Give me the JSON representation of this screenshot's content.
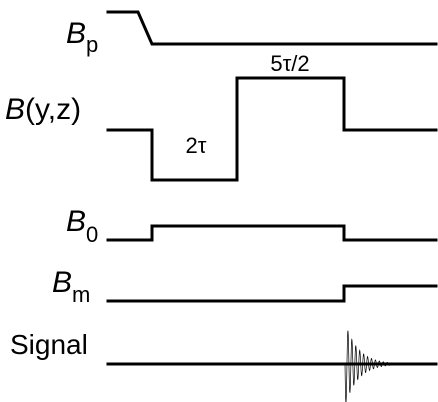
{
  "channels": {
    "bp": {
      "symbol": "B",
      "subscript": "p"
    },
    "byz": {
      "symbol": "B",
      "args": "(y,z)"
    },
    "b0": {
      "symbol": "B",
      "subscript": "0"
    },
    "bm": {
      "symbol": "B",
      "subscript": "m"
    },
    "signal": {
      "label": "Signal"
    }
  },
  "pulses": {
    "negative_lobe_duration": "2τ",
    "positive_lobe_duration": "5τ/2"
  }
}
